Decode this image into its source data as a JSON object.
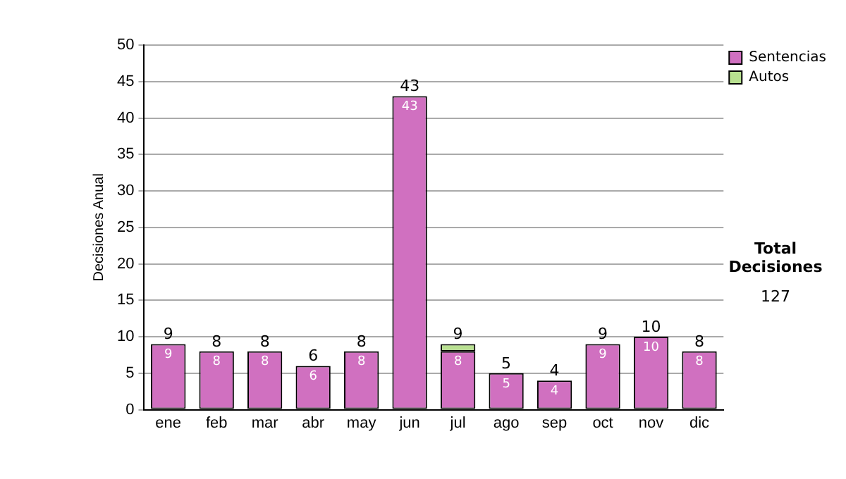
{
  "chart_data": {
    "type": "bar",
    "stacked": true,
    "ylabel": "Decisiones Anual",
    "categories": [
      "ene",
      "feb",
      "mar",
      "abr",
      "may",
      "jun",
      "jul",
      "ago",
      "sep",
      "oct",
      "nov",
      "dic"
    ],
    "series": [
      {
        "name": "Sentencias",
        "color": "#d070c0",
        "values": [
          9,
          8,
          8,
          6,
          8,
          43,
          8,
          5,
          4,
          9,
          10,
          8
        ],
        "value_labels": [
          "9",
          "8",
          "8",
          "6",
          "8",
          "43",
          "8",
          "5",
          "4",
          "9",
          "10",
          "8"
        ]
      },
      {
        "name": "Autos",
        "color": "#b8e090",
        "values": [
          0,
          0,
          0,
          0,
          0,
          0,
          1,
          0,
          0,
          0,
          0,
          0
        ]
      }
    ],
    "totals": [
      "9",
      "8",
      "8",
      "6",
      "8",
      "43",
      "9",
      "5",
      "4",
      "9",
      "10",
      "8"
    ],
    "ylim": [
      0,
      50
    ],
    "yticks": [
      0,
      5,
      10,
      15,
      20,
      25,
      30,
      35,
      40,
      45,
      50
    ],
    "grid": "y",
    "legend": "right",
    "annotations": [
      "Total Decisiones",
      "127"
    ]
  }
}
